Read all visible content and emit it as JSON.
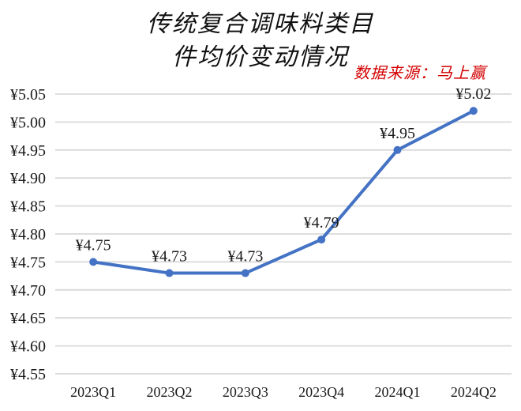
{
  "title": {
    "line1": "传统复合调味料类目",
    "line2": "件均价变动情况"
  },
  "source_note": "数据来源：马上赢",
  "colors": {
    "line": "#4472C4",
    "marker": "#4472C4",
    "grid": "#D9D9D9",
    "axis_text": "#1a1a1a",
    "source_text": "#d40000",
    "background": "#ffffff"
  },
  "chart_data": {
    "type": "line",
    "title": "传统复合调味料类目 件均价变动情况",
    "categories": [
      "2023Q1",
      "2023Q2",
      "2023Q3",
      "2023Q4",
      "2024Q1",
      "2024Q2"
    ],
    "values": [
      4.75,
      4.73,
      4.73,
      4.79,
      4.95,
      5.02
    ],
    "point_labels": [
      "¥4.75",
      "¥4.73",
      "¥4.73",
      "¥4.79",
      "¥4.95",
      "¥5.02"
    ],
    "currency": "¥",
    "xlabel": "",
    "ylabel": "",
    "ylim": [
      4.55,
      5.05
    ],
    "ytick_values": [
      4.55,
      4.6,
      4.65,
      4.7,
      4.75,
      4.8,
      4.85,
      4.9,
      4.95,
      5.0,
      5.05
    ],
    "ytick_labels": [
      "¥4.55",
      "¥4.60",
      "¥4.65",
      "¥4.70",
      "¥4.75",
      "¥4.80",
      "¥4.85",
      "¥4.90",
      "¥4.95",
      "¥5.00",
      "¥5.05"
    ],
    "grid": "horizontal",
    "legend_position": "none",
    "marker": "circle"
  }
}
